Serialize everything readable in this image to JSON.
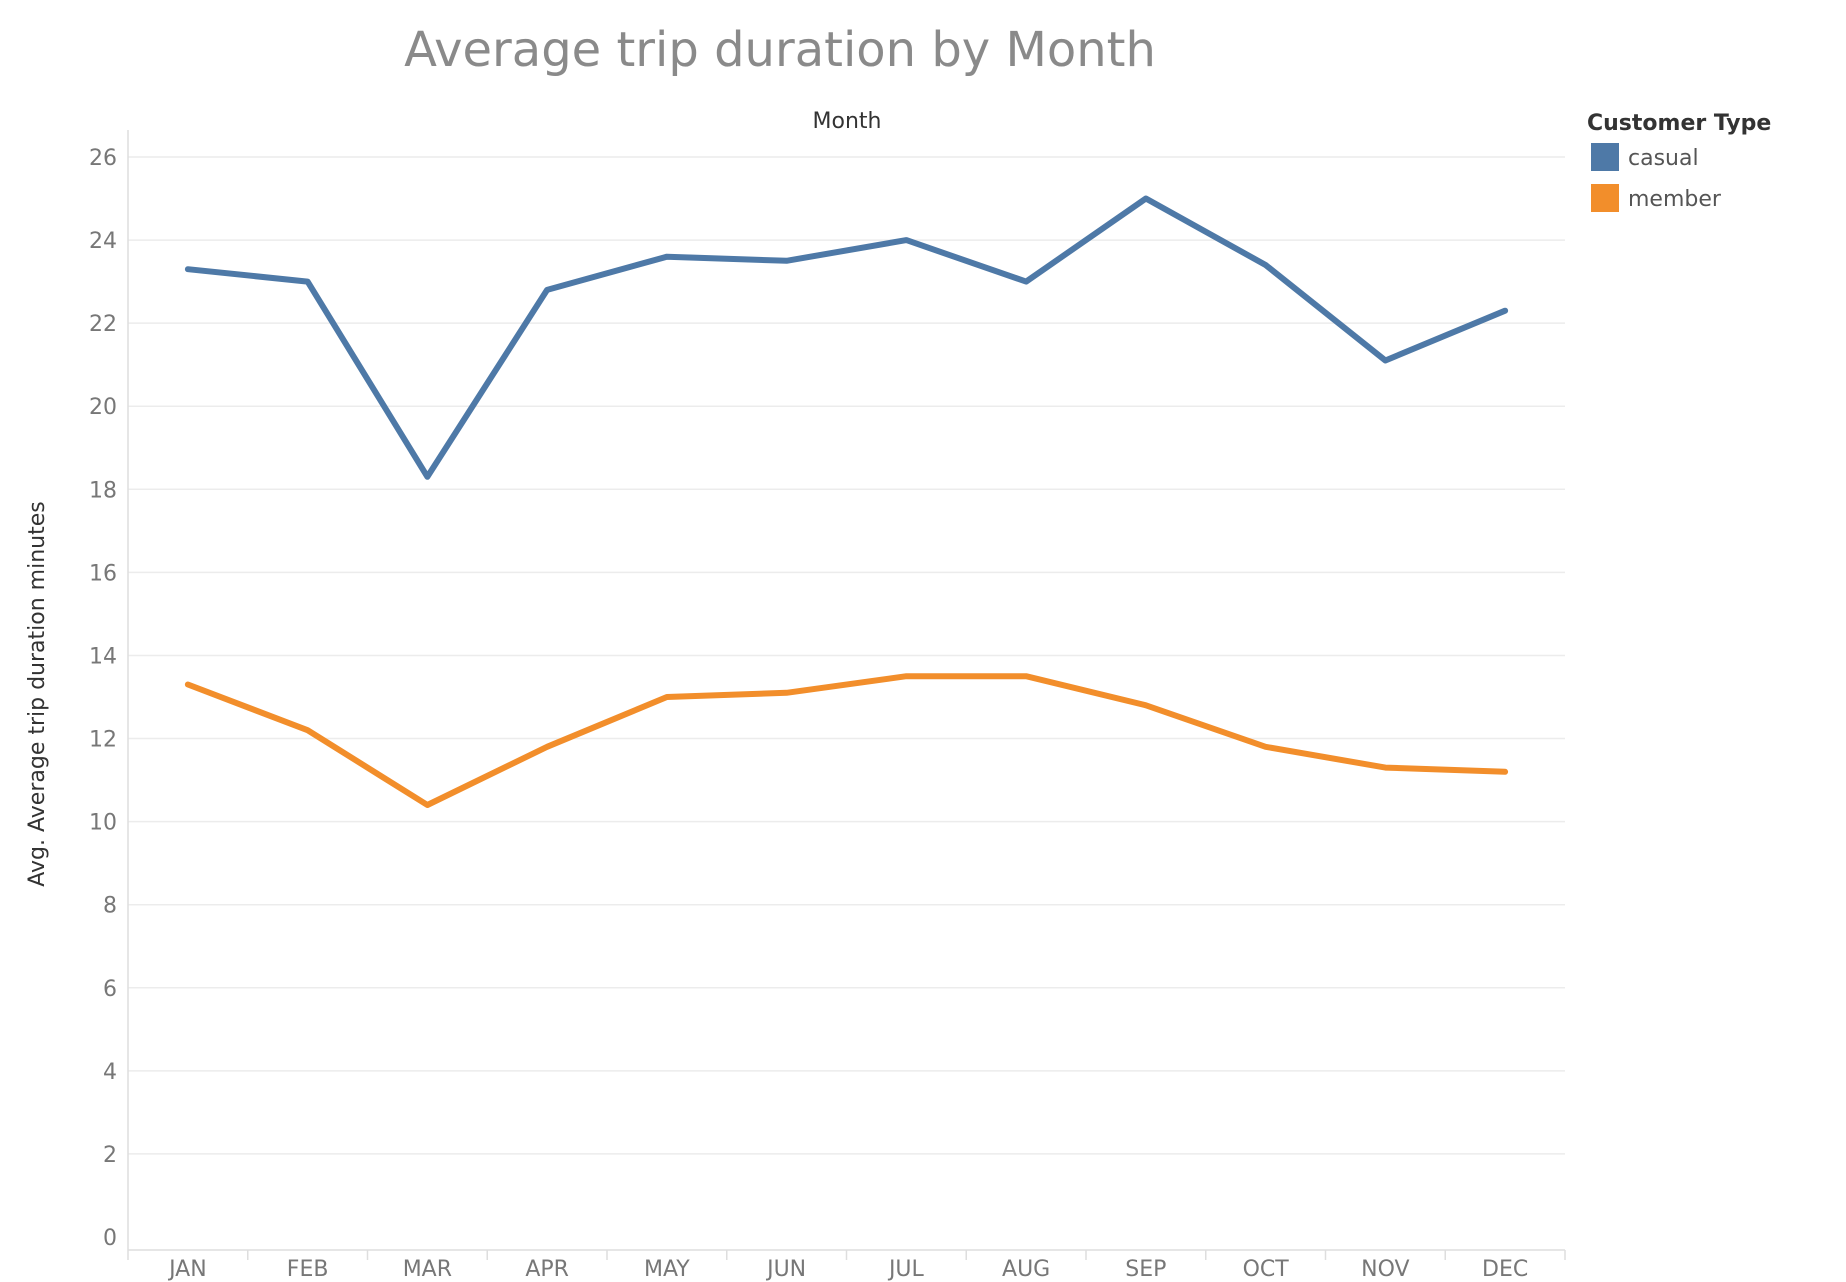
{
  "chart_data": {
    "type": "line",
    "title": "Average trip duration by Month",
    "column_header": "Month",
    "xlabel": "",
    "ylabel": "Avg. Average trip duration minutes",
    "categories": [
      "JAN",
      "FEB",
      "MAR",
      "APR",
      "MAY",
      "JUN",
      "JUL",
      "AUG",
      "SEP",
      "OCT",
      "NOV",
      "DEC"
    ],
    "ylim": [
      0,
      26
    ],
    "yticks": [
      0,
      2,
      4,
      6,
      8,
      10,
      12,
      14,
      16,
      18,
      20,
      22,
      24,
      26
    ],
    "grid": true,
    "legend": {
      "title": "Customer Type",
      "placement": "right"
    },
    "series": [
      {
        "name": "casual",
        "color": "#4e79a7",
        "values": [
          23.3,
          23.0,
          18.3,
          22.8,
          23.6,
          23.5,
          24.0,
          23.0,
          25.0,
          23.4,
          21.1,
          22.3
        ]
      },
      {
        "name": "member",
        "color": "#f28e2b",
        "values": [
          13.3,
          12.2,
          10.4,
          11.8,
          13.0,
          13.1,
          13.5,
          13.5,
          12.8,
          11.8,
          11.3,
          11.2
        ]
      }
    ]
  }
}
